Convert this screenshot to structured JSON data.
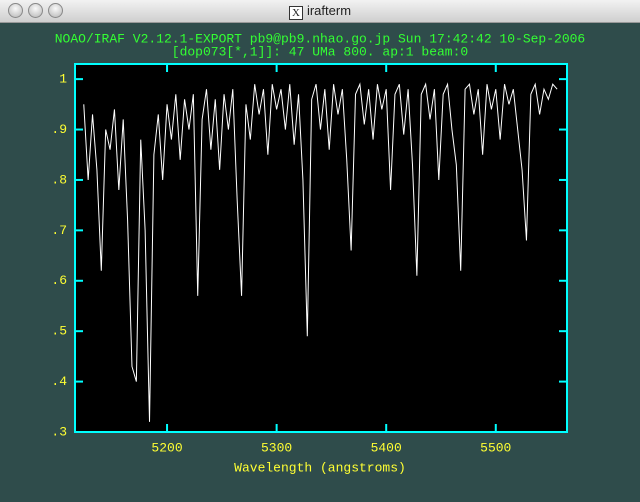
{
  "window": {
    "title": "irafterm"
  },
  "chart_data": {
    "type": "line",
    "title": "NOAO/IRAF V2.12.1-EXPORT pb9@pb9.nhao.go.jp Sun 17:42:42 10-Sep-2006",
    "subtitle": "[dop073[*,1]]: 47 UMa 800. ap:1 beam:0",
    "xlabel": "Wavelength (angstroms)",
    "xlim": [
      5116,
      5565
    ],
    "xticks": [
      5200,
      5300,
      5400,
      5500
    ],
    "ylim": [
      0.3,
      1.03
    ],
    "yticks": [
      {
        "value": 0.3,
        "label": ".3"
      },
      {
        "value": 0.4,
        "label": ".4"
      },
      {
        "value": 0.5,
        "label": ".5"
      },
      {
        "value": 0.6,
        "label": ".6"
      },
      {
        "value": 0.7,
        "label": ".7"
      },
      {
        "value": 0.8,
        "label": ".8"
      },
      {
        "value": 0.9,
        "label": ".9"
      },
      1
    ],
    "grid": false,
    "x": [
      5124,
      5128,
      5132,
      5136,
      5140,
      5144,
      5148,
      5152,
      5156,
      5160,
      5164,
      5168,
      5172,
      5176,
      5180,
      5184,
      5188,
      5192,
      5196,
      5200,
      5204,
      5208,
      5212,
      5216,
      5220,
      5224,
      5228,
      5232,
      5236,
      5240,
      5244,
      5248,
      5252,
      5256,
      5260,
      5264,
      5268,
      5272,
      5276,
      5280,
      5284,
      5288,
      5292,
      5296,
      5300,
      5304,
      5308,
      5312,
      5316,
      5320,
      5324,
      5328,
      5332,
      5336,
      5340,
      5344,
      5348,
      5352,
      5356,
      5360,
      5364,
      5368,
      5372,
      5376,
      5380,
      5384,
      5388,
      5392,
      5396,
      5400,
      5404,
      5408,
      5412,
      5416,
      5420,
      5424,
      5428,
      5432,
      5436,
      5440,
      5444,
      5448,
      5452,
      5456,
      5460,
      5464,
      5468,
      5472,
      5476,
      5480,
      5484,
      5488,
      5492,
      5496,
      5500,
      5504,
      5508,
      5512,
      5516,
      5520,
      5524,
      5528,
      5532,
      5536,
      5540,
      5544,
      5548,
      5552,
      5556
    ],
    "series": [
      {
        "color": "#ffffff",
        "values": [
          0.95,
          0.8,
          0.93,
          0.82,
          0.62,
          0.9,
          0.86,
          0.94,
          0.78,
          0.92,
          0.72,
          0.43,
          0.4,
          0.88,
          0.7,
          0.32,
          0.85,
          0.93,
          0.8,
          0.95,
          0.88,
          0.97,
          0.84,
          0.96,
          0.9,
          0.97,
          0.57,
          0.92,
          0.98,
          0.86,
          0.96,
          0.82,
          0.97,
          0.9,
          0.98,
          0.76,
          0.57,
          0.95,
          0.88,
          0.99,
          0.93,
          0.98,
          0.85,
          0.99,
          0.94,
          0.98,
          0.9,
          0.99,
          0.87,
          0.97,
          0.8,
          0.49,
          0.96,
          0.99,
          0.9,
          0.98,
          0.86,
          0.99,
          0.93,
          0.98,
          0.84,
          0.66,
          0.97,
          0.99,
          0.91,
          0.98,
          0.88,
          0.99,
          0.94,
          0.98,
          0.78,
          0.97,
          0.99,
          0.89,
          0.98,
          0.83,
          0.61,
          0.97,
          0.99,
          0.92,
          0.98,
          0.8,
          0.97,
          0.99,
          0.9,
          0.83,
          0.62,
          0.98,
          0.99,
          0.93,
          0.98,
          0.85,
          0.99,
          0.94,
          0.98,
          0.88,
          0.99,
          0.95,
          0.98,
          0.9,
          0.82,
          0.68,
          0.97,
          0.99,
          0.93,
          0.98,
          0.96,
          0.99,
          0.98
        ]
      }
    ]
  }
}
